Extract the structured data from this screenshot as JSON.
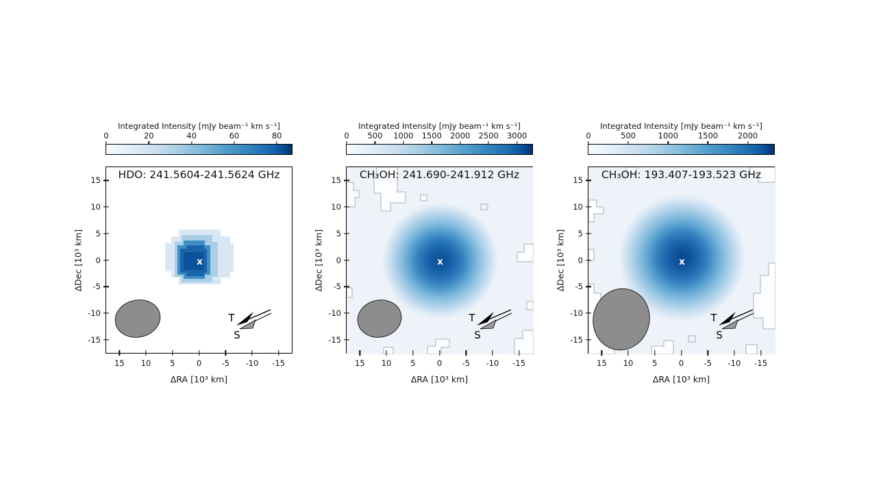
{
  "figure": {
    "colorbar_label": "Integrated Intensity [mJy beam⁻¹ km s⁻¹]",
    "x_label": "ΔRA [10³ km]",
    "y_label": "ΔDec [10³ km]",
    "x_tick_labels": [
      "15",
      "10",
      "5",
      "0",
      "-5",
      "-10",
      "-15"
    ],
    "y_tick_labels": [
      "15",
      "10",
      "5",
      "0",
      "-5",
      "-10",
      "-15"
    ],
    "center_marker": "x",
    "arrow_labels": {
      "t": "T",
      "s": "S"
    }
  },
  "panels": [
    {
      "title": "HDO: 241.5604-241.5624 GHz",
      "colorbar_ticks": [
        0,
        20,
        40,
        60,
        80
      ],
      "colorbar_vmax": 87
    },
    {
      "title": "CH₃OH: 241.690-241.912 GHz",
      "colorbar_ticks": [
        0,
        500,
        1000,
        1500,
        2000,
        2500,
        3000
      ],
      "colorbar_vmax": 3270
    },
    {
      "title": "CH₃OH: 193.407-193.523 GHz",
      "colorbar_ticks": [
        0,
        500,
        1000,
        1500,
        2000
      ],
      "colorbar_vmax": 2330
    }
  ],
  "colors": {
    "colormap_min": "#f7fbff",
    "colormap_max": "#08306b",
    "beam_gray": "#8d8d8d",
    "contour_gray": "#aab0b7",
    "marker_white": "#ffffff"
  },
  "chart_data": [
    {
      "type": "heatmap",
      "title": "HDO: 241.5604-241.5624 GHz",
      "molecule": "HDO",
      "frequency_range_GHz": [
        241.5604,
        241.5624
      ],
      "colormap": "Blues",
      "colorbar": {
        "label": "Integrated Intensity [mJy beam⁻¹ km s⁻¹]",
        "ticks": [
          0,
          20,
          40,
          60,
          80
        ],
        "range": [
          0,
          87
        ]
      },
      "xlabel": "ΔRA [10³ km]",
      "ylabel": "ΔDec [10³ km]",
      "x_range": [
        17.5,
        -17.5
      ],
      "y_range": [
        -17.5,
        17.5
      ],
      "x_ticks": [
        15,
        10,
        5,
        0,
        -5,
        -10,
        -15
      ],
      "y_ticks": [
        15,
        10,
        5,
        0,
        -5,
        -10,
        -15
      ],
      "peak": {
        "x": 0,
        "y": 0,
        "marker": "x",
        "approx_value": 87
      },
      "emission_extent_1e3km": {
        "x": [
          -6,
          7
        ],
        "y": [
          -6,
          5
        ],
        "shape": "compact pixelated blob, dark core slightly left of center"
      },
      "beam": {
        "center_1e3km": [
          12,
          -11
        ],
        "width_1e3km": 8.5,
        "height_1e3km": 7
      },
      "annotations": [
        {
          "label": "T",
          "type": "arrow",
          "points": "toward lower-left"
        },
        {
          "label": "S",
          "type": "arrow",
          "points": "toward lower-left"
        }
      ]
    },
    {
      "type": "heatmap",
      "title": "CH₃OH: 241.690-241.912 GHz",
      "molecule": "CH3OH",
      "frequency_range_GHz": [
        241.69,
        241.912
      ],
      "colormap": "Blues",
      "colorbar": {
        "label": "Integrated Intensity [mJy beam⁻¹ km s⁻¹]",
        "ticks": [
          0,
          500,
          1000,
          1500,
          2000,
          2500,
          3000
        ],
        "range": [
          0,
          3270
        ]
      },
      "xlabel": "ΔRA [10³ km]",
      "ylabel": "ΔDec [10³ km]",
      "x_range": [
        17.5,
        -17.5
      ],
      "y_range": [
        -17.5,
        17.5
      ],
      "x_ticks": [
        15,
        10,
        5,
        0,
        -5,
        -10,
        -15
      ],
      "y_ticks": [
        15,
        10,
        5,
        0,
        -5,
        -10,
        -15
      ],
      "peak": {
        "x": 0,
        "y": 0,
        "marker": "x",
        "approx_value": 3270
      },
      "emission_extent_1e3km": {
        "x": [
          -10,
          10
        ],
        "y": [
          -10,
          10
        ],
        "shape": "smooth Gaussian-like halo centered at origin over faint extended emission"
      },
      "beam": {
        "center_1e3km": [
          11,
          -11
        ],
        "width_1e3km": 8,
        "height_1e3km": 7
      },
      "contours": "thin gray contour outlines low-level emission across the field",
      "annotations": [
        {
          "label": "T",
          "type": "arrow",
          "points": "toward lower-left"
        },
        {
          "label": "S",
          "type": "arrow",
          "points": "toward lower-left"
        }
      ]
    },
    {
      "type": "heatmap",
      "title": "CH₃OH: 193.407-193.523 GHz",
      "molecule": "CH3OH",
      "frequency_range_GHz": [
        193.407,
        193.523
      ],
      "colormap": "Blues",
      "colorbar": {
        "label": "Integrated Intensity [mJy beam⁻¹ km s⁻¹]",
        "ticks": [
          0,
          500,
          1000,
          1500,
          2000
        ],
        "range": [
          0,
          2330
        ]
      },
      "xlabel": "ΔRA [10³ km]",
      "ylabel": "ΔDec [10³ km]",
      "x_range": [
        17.5,
        -17.5
      ],
      "y_range": [
        -17.5,
        17.5
      ],
      "x_ticks": [
        15,
        10,
        5,
        0,
        -5,
        -10,
        -15
      ],
      "y_ticks": [
        15,
        10,
        5,
        0,
        -5,
        -10,
        -15
      ],
      "peak": {
        "x": 0,
        "y": 0,
        "marker": "x",
        "approx_value": 2330
      },
      "emission_extent_1e3km": {
        "x": [
          -12,
          12
        ],
        "y": [
          -11,
          13
        ],
        "shape": "broad mottled Gaussian-like halo centered at origin"
      },
      "beam": {
        "center_1e3km": [
          12,
          -11
        ],
        "width_1e3km": 10.5,
        "height_1e3km": 11.5
      },
      "contours": "thin gray contour outlines low-level emission across the field",
      "annotations": [
        {
          "label": "T",
          "type": "arrow",
          "points": "toward lower-left"
        },
        {
          "label": "S",
          "type": "arrow",
          "points": "toward lower-left"
        }
      ]
    }
  ]
}
